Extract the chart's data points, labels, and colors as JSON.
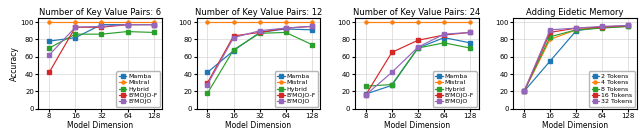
{
  "x_vals": [
    8,
    16,
    32,
    64,
    128
  ],
  "x_labels": [
    "8",
    "16",
    "32",
    "64",
    "128"
  ],
  "plots": [
    {
      "title": "Number of Key Value Pairs: 6",
      "series": [
        {
          "label": "Mamba",
          "color": "#1f77b4",
          "marker": "s",
          "y": [
            78,
            82,
            97,
            97,
            97
          ]
        },
        {
          "label": "Mistral",
          "color": "#ff7f0e",
          "marker": "o",
          "y": [
            100,
            100,
            100,
            100,
            100
          ]
        },
        {
          "label": "Hybrid",
          "color": "#2ca02c",
          "marker": "s",
          "y": [
            70,
            86,
            86,
            89,
            88
          ]
        },
        {
          "label": "B'MOJO-F",
          "color": "#d62728",
          "marker": "s",
          "y": [
            42,
            94,
            94,
            97,
            97
          ]
        },
        {
          "label": "B'MOJO",
          "color": "#9467bd",
          "marker": "s",
          "y": [
            62,
            94,
            95,
            97,
            97
          ]
        }
      ],
      "show_ylabel": true
    },
    {
      "title": "Number of Key Value Pairs: 12",
      "series": [
        {
          "label": "Mamba",
          "color": "#1f77b4",
          "marker": "s",
          "y": [
            42,
            67,
            88,
            92,
            91
          ]
        },
        {
          "label": "Mistral",
          "color": "#ff7f0e",
          "marker": "o",
          "y": [
            100,
            100,
            100,
            100,
            100
          ]
        },
        {
          "label": "Hybrid",
          "color": "#2ca02c",
          "marker": "s",
          "y": [
            18,
            68,
            87,
            88,
            74
          ]
        },
        {
          "label": "B'MOJO-F",
          "color": "#d62728",
          "marker": "s",
          "y": [
            30,
            84,
            88,
            93,
            95
          ]
        },
        {
          "label": "B'MOJO",
          "color": "#9467bd",
          "marker": "s",
          "y": [
            28,
            82,
            90,
            93,
            95
          ]
        }
      ],
      "show_ylabel": false
    },
    {
      "title": "Number of Key Value Pairs: 24",
      "series": [
        {
          "label": "Mamba",
          "color": "#1f77b4",
          "marker": "s",
          "y": [
            17,
            27,
            70,
            82,
            76
          ]
        },
        {
          "label": "Mistral",
          "color": "#ff7f0e",
          "marker": "o",
          "y": [
            100,
            100,
            100,
            100,
            100
          ]
        },
        {
          "label": "Hybrid",
          "color": "#2ca02c",
          "marker": "s",
          "y": [
            26,
            28,
            70,
            76,
            70
          ]
        },
        {
          "label": "B'MOJO-F",
          "color": "#d62728",
          "marker": "s",
          "y": [
            16,
            65,
            79,
            85,
            88
          ]
        },
        {
          "label": "B'MOJO",
          "color": "#9467bd",
          "marker": "s",
          "y": [
            16,
            42,
            71,
            86,
            88
          ]
        }
      ],
      "show_ylabel": false
    },
    {
      "title": "Adding Eidetic Memory",
      "series": [
        {
          "label": "2 Tokens",
          "color": "#1f77b4",
          "marker": "s",
          "y": [
            20,
            55,
            90,
            94,
            95
          ]
        },
        {
          "label": "4 Tokens",
          "color": "#ff7f0e",
          "marker": "o",
          "y": [
            20,
            80,
            91,
            94,
            95
          ]
        },
        {
          "label": "8 Tokens",
          "color": "#2ca02c",
          "marker": "s",
          "y": [
            20,
            83,
            91,
            93,
            95
          ]
        },
        {
          "label": "16 Tokens",
          "color": "#d62728",
          "marker": "s",
          "y": [
            20,
            88,
            93,
            94,
            96
          ]
        },
        {
          "label": "32 Tokens",
          "color": "#9467bd",
          "marker": "s",
          "y": [
            20,
            91,
            93,
            95,
            96
          ]
        }
      ],
      "show_ylabel": false
    }
  ],
  "xlabel": "Model Dimension",
  "ylabel": "Accuracy",
  "ylim": [
    0,
    105
  ],
  "yticks": [
    0,
    20,
    40,
    60,
    80,
    100
  ],
  "figsize": [
    6.4,
    1.36
  ],
  "dpi": 100,
  "title_fontsize": 6.0,
  "axis_label_fontsize": 5.5,
  "tick_fontsize": 5.0,
  "legend_fontsize": 4.5,
  "line_width": 0.85,
  "marker_size": 2.2
}
